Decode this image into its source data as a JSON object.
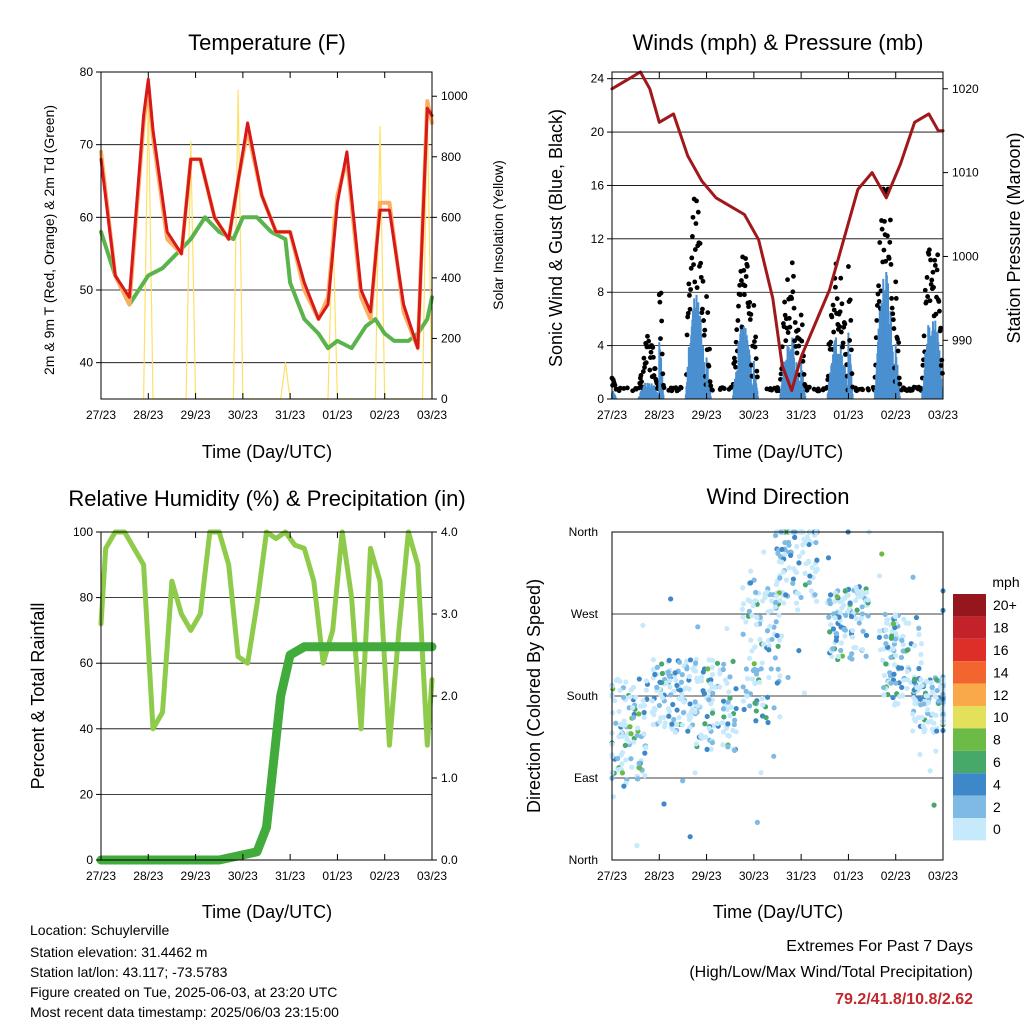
{
  "days": [
    "27/23",
    "28/23",
    "29/23",
    "30/23",
    "31/23",
    "01/23",
    "02/23",
    "03/23"
  ],
  "chart_data": [
    {
      "type": "line",
      "title": "Temperature (F)",
      "xlabel": "Time (Day/UTC)",
      "ylabel": "2m & 9m T (Red, Orange) & 2m Td (Green)",
      "y2label": "Solar Insolation (Yellow)",
      "ylim": [
        35,
        80
      ],
      "y2lim": [
        0,
        1080
      ],
      "yticks": [
        "40",
        "50",
        "60",
        "70",
        "80"
      ],
      "y2ticks": [
        "0",
        "200",
        "400",
        "600",
        "800",
        "1000"
      ],
      "series": [
        {
          "color": "#d7191c",
          "x": [
            0,
            0.3,
            0.6,
            0.9,
            1.0,
            1.1,
            1.4,
            1.7,
            1.9,
            2.1,
            2.4,
            2.7,
            2.9,
            3.1,
            3.4,
            3.7,
            4.0,
            4.3,
            4.6,
            4.8,
            5.0,
            5.2,
            5.5,
            5.7,
            5.9,
            6.1,
            6.4,
            6.7,
            6.9,
            7.0
          ],
          "values": [
            68,
            52,
            49,
            74,
            79,
            72,
            58,
            55,
            68,
            68,
            60,
            57,
            65,
            73,
            63,
            58,
            58,
            51,
            46,
            48,
            62,
            69,
            50,
            47,
            61,
            61,
            48,
            42,
            75,
            74
          ]
        },
        {
          "color": "#fdae61",
          "x": [
            0,
            0.3,
            0.6,
            0.9,
            1.0,
            1.1,
            1.4,
            1.7,
            1.9,
            2.1,
            2.4,
            2.7,
            2.9,
            3.1,
            3.4,
            3.7,
            4.0,
            4.3,
            4.6,
            4.8,
            5.0,
            5.2,
            5.5,
            5.7,
            5.9,
            6.1,
            6.4,
            6.7,
            6.9,
            7.0
          ],
          "values": [
            69,
            52,
            48,
            73,
            78,
            71,
            57,
            55,
            68,
            68,
            60,
            57,
            65,
            72,
            63,
            58,
            58,
            50,
            46,
            49,
            63,
            68,
            49,
            46,
            62,
            62,
            47,
            42,
            76,
            73
          ]
        },
        {
          "color": "#5ab44b",
          "x": [
            0,
            0.3,
            0.6,
            0.8,
            1.0,
            1.3,
            1.6,
            1.9,
            2.2,
            2.5,
            2.8,
            3.0,
            3.3,
            3.6,
            3.9,
            4.0,
            4.3,
            4.6,
            4.8,
            5.0,
            5.3,
            5.6,
            5.8,
            6.0,
            6.2,
            6.5,
            6.7,
            6.9,
            7.0
          ],
          "values": [
            58,
            52,
            48,
            50,
            52,
            53,
            55,
            57,
            60,
            58,
            57,
            60,
            60,
            58,
            57,
            51,
            46,
            44,
            42,
            43,
            42,
            45,
            46,
            44,
            43,
            43,
            44,
            46,
            49
          ]
        },
        {
          "color": "#ffe066",
          "x": [
            0.9,
            1.0,
            1.1,
            1.8,
            1.9,
            2.0,
            2.8,
            2.9,
            3.0,
            3.8,
            3.9,
            4.0,
            4.8,
            4.9,
            5.0,
            5.8,
            5.9,
            6.0,
            6.8,
            6.9,
            7.0
          ],
          "values": [
            0,
            1000,
            0,
            0,
            850,
            0,
            0,
            1020,
            0,
            0,
            120,
            0,
            0,
            600,
            0,
            0,
            900,
            0,
            0,
            960,
            0
          ]
        }
      ]
    },
    {
      "type": "scatter",
      "title": "Winds (mph) & Pressure (mb)",
      "xlabel": "Time (Day/UTC)",
      "ylabel": "Sonic Wind & Gust (Blue, Black)",
      "y2label": "Station Pressure (Maroon)",
      "ylim": [
        0,
        24.5
      ],
      "y2lim": [
        983,
        1022
      ],
      "yticks": [
        "0",
        "4",
        "8",
        "12",
        "16",
        "20",
        "24"
      ],
      "y2ticks": [
        "990",
        "1000",
        "1010",
        "1020"
      ],
      "series": [
        {
          "color": "#a0181c",
          "x": [
            0,
            0.3,
            0.6,
            0.8,
            1.0,
            1.3,
            1.6,
            1.9,
            2.2,
            2.5,
            2.8,
            3.1,
            3.4,
            3.6,
            3.8,
            4.0,
            4.3,
            4.6,
            4.9,
            5.2,
            5.5,
            5.8,
            6.1,
            6.4,
            6.7,
            6.9,
            7.0
          ],
          "values": [
            1020,
            1021,
            1022,
            1020,
            1016,
            1017,
            1012,
            1009,
            1007,
            1006,
            1005,
            1002,
            995,
            987,
            984,
            988,
            992,
            996,
            1002,
            1008,
            1010,
            1007,
            1011,
            1016,
            1017,
            1015,
            1015
          ]
        }
      ]
    },
    {
      "type": "line",
      "title": "Relative Humidity (%) & Precipitation (in)",
      "xlabel": "Time (Day/UTC)",
      "ylabel": "Percent & Total Rainfall",
      "ylim": [
        0,
        100
      ],
      "y2lim": [
        0,
        4
      ],
      "yticks": [
        "0",
        "20",
        "40",
        "60",
        "80",
        "100"
      ],
      "y2ticks": [
        "0.0",
        "1.0",
        "2.0",
        "3.0",
        "4.0"
      ],
      "series": [
        {
          "color": "#8fcb4a",
          "x": [
            0,
            0.1,
            0.3,
            0.5,
            0.9,
            1.1,
            1.3,
            1.5,
            1.7,
            1.9,
            2.1,
            2.3,
            2.5,
            2.7,
            2.9,
            3.1,
            3.3,
            3.5,
            3.7,
            3.9,
            4.1,
            4.3,
            4.5,
            4.7,
            4.9,
            5.1,
            5.3,
            5.5,
            5.7,
            5.9,
            6.1,
            6.3,
            6.5,
            6.7,
            6.9,
            7.0
          ],
          "values": [
            72,
            95,
            100,
            100,
            90,
            40,
            45,
            85,
            75,
            70,
            75,
            100,
            100,
            90,
            62,
            60,
            78,
            100,
            98,
            100,
            96,
            95,
            85,
            60,
            70,
            100,
            80,
            40,
            95,
            85,
            35,
            70,
            100,
            90,
            35,
            55
          ]
        },
        {
          "color": "#41ab3c",
          "x": [
            0,
            2.5,
            3.3,
            3.5,
            3.8,
            4.0,
            4.3,
            7.0
          ],
          "values": [
            0,
            0,
            0.1,
            0.4,
            2.0,
            2.5,
            2.6,
            2.6
          ]
        }
      ]
    },
    {
      "type": "scatter",
      "title": "Wind Direction",
      "xlabel": "Time (Day/UTC)",
      "ylabel": "Direction (Colored By Speed)",
      "yticks": [
        "North",
        "East",
        "South",
        "West",
        "North"
      ],
      "legend_unit": "mph",
      "legend": [
        "0",
        "2",
        "4",
        "6",
        "8",
        "10",
        "12",
        "14",
        "16",
        "18",
        "20+"
      ],
      "legend_colors": [
        "#c6e9fb",
        "#7ebae4",
        "#3e88c9",
        "#46a869",
        "#6cbb47",
        "#e3e05c",
        "#f9a84a",
        "#f2652e",
        "#dd2f28",
        "#c4222b",
        "#95171d"
      ]
    }
  ],
  "footer": {
    "location": "Location: Schuylerville",
    "elevation": "Station elevation: 31.4462 m",
    "latlon": "Station lat/lon: 43.117; -73.5783",
    "created": "Figure created on Tue, 2025-06-03, at 23:20 UTC",
    "recent": "Most recent data timestamp: 2025/06/03 23:15:00"
  },
  "extremes": {
    "title": "Extremes For Past 7 Days",
    "subtitle": "(High/Low/Max Wind/Total Precipitation)",
    "values": "79.2/41.8/10.8/2.62"
  }
}
